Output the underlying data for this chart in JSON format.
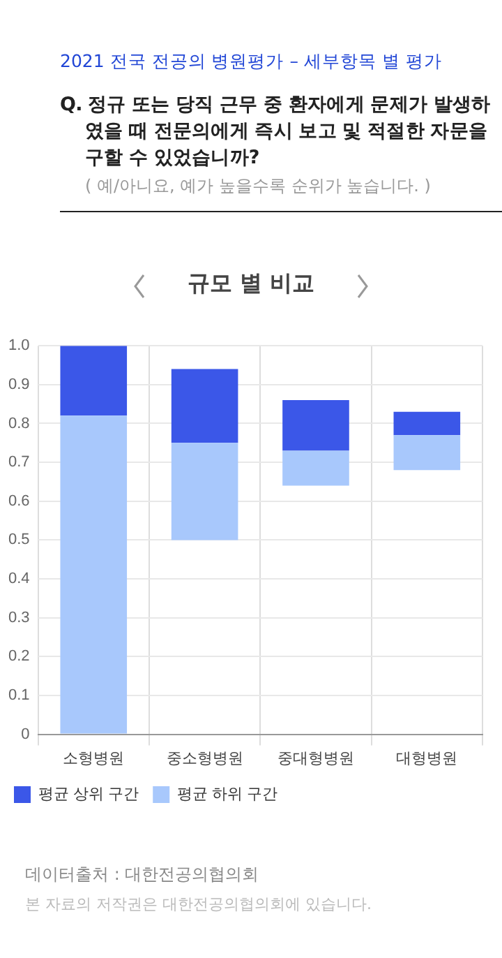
{
  "chart_data": {
    "type": "bar",
    "title": "2021 전국 전공의 병원평가 – 세부항목 별 평가",
    "subtitle": "Q. 정규 또는 당직 근무 중 환자에게 문제가 발생하였을 때 전문의에게 즉시 보고 및 적절한 자문을 구할 수 있었습니까?",
    "annotations": [
      "( 예/아니요, 예가 높을수록 순위가 높습니다. )",
      "규모 별 비교",
      "데이터출처 : 대한전공의협의회",
      "본 자료의 저작권은 대한전공의협의회에 있습니다."
    ],
    "categories": [
      "소형병원",
      "중소형병원",
      "중대형병원",
      "대형병원"
    ],
    "series": [
      {
        "name": "평균 하위 구간",
        "color": "#a8c8fc",
        "base": [
          0,
          0.5,
          0.64,
          0.68
        ],
        "values": [
          0.82,
          0.25,
          0.09,
          0.09
        ]
      },
      {
        "name": "평균 상위 구간",
        "color": "#3b57e8",
        "base": [
          0.82,
          0.75,
          0.73,
          0.77
        ],
        "values": [
          0.18,
          0.19,
          0.13,
          0.06
        ]
      }
    ],
    "ylim": [
      0,
      1
    ],
    "yticks": [
      0,
      0.1,
      0.2,
      0.3,
      0.4,
      0.5,
      0.6,
      0.7,
      0.8,
      0.9,
      {
        "value": 1,
        "label": "1.0"
      }
    ],
    "grid": true,
    "legend": "bottom left"
  }
}
